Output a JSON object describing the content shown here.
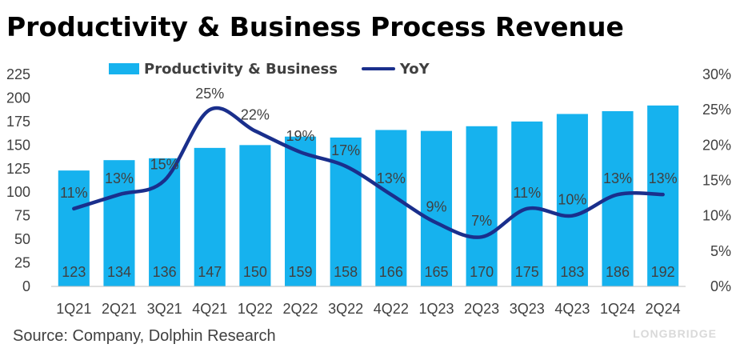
{
  "chart_data": {
    "type": "bar",
    "title": "Productivity & Business Process Revenue",
    "categories": [
      "1Q21",
      "2Q21",
      "3Q21",
      "4Q21",
      "1Q22",
      "2Q22",
      "3Q22",
      "4Q22",
      "1Q23",
      "2Q23",
      "3Q23",
      "4Q23",
      "1Q24",
      "2Q24"
    ],
    "series": [
      {
        "name": "Productivity & Business",
        "type": "bar",
        "axis": "left",
        "color": "#16b2ee",
        "values": [
          123,
          134,
          136,
          147,
          150,
          159,
          158,
          166,
          165,
          170,
          175,
          183,
          186,
          192
        ]
      },
      {
        "name": "YoY",
        "type": "line",
        "axis": "right",
        "color": "#1a2f8c",
        "values": [
          11,
          13,
          15,
          25,
          22,
          19,
          17,
          13,
          9,
          7,
          11,
          10,
          13,
          13
        ],
        "labels": [
          "11%",
          "13%",
          "15%",
          "25%",
          "22%",
          "19%",
          "17%",
          "13%",
          "9%",
          "7%",
          "11%",
          "10%",
          "13%",
          "13%"
        ]
      }
    ],
    "ylim": [
      0,
      225
    ],
    "yticks": [
      "0",
      "25",
      "50",
      "75",
      "100",
      "125",
      "150",
      "175",
      "200",
      "225"
    ],
    "y2lim": [
      0,
      30
    ],
    "y2ticks": [
      "0%",
      "5%",
      "10%",
      "15%",
      "20%",
      "25%",
      "30%"
    ],
    "legend": "top",
    "grid": false
  },
  "source": "Source:  Company, Dolphin Research",
  "watermark": {
    "brand": "LONGBRIDGE"
  }
}
